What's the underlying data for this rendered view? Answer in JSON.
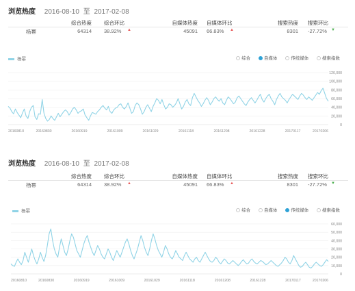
{
  "panels": [
    {
      "title": "浏览热度",
      "date_from": "2016-08-10",
      "date_sep": "至",
      "date_to": "2017-02-08",
      "stats": {
        "headers": {
          "overall": "综合热度",
          "overall_change": "综合环比",
          "media": "自媒体热度",
          "media_change": "自媒体环比",
          "search": "搜索热度",
          "search_change": "搜索环比"
        },
        "row": {
          "name": "杨幂",
          "overall": "64314",
          "overall_change": "38.92%",
          "overall_dir": "up",
          "media": "45091",
          "media_change": "66.83%",
          "media_dir": "up",
          "search": "8301",
          "search_change": "-27.72%",
          "search_dir": "down"
        }
      },
      "legend_label": "杨幂",
      "radio_options": [
        "综合",
        "自媒体",
        "传统媒体",
        "搜索指数"
      ],
      "radio_selected": 1,
      "colors": {
        "line": "#8fd3e6",
        "accent": "#2fa2d6",
        "up": "#e75c5c",
        "down": "#4caf50"
      },
      "chart_data": {
        "type": "line",
        "x_ticks": [
          "20160810",
          "20160830",
          "20160919",
          "20161009",
          "20161029",
          "20161118",
          "20161208",
          "20161228",
          "20170117",
          "20170206"
        ],
        "y_ticks": [
          "0",
          "20,000",
          "40,000",
          "60,000",
          "80,000",
          "100,000",
          "120,000"
        ],
        "ylim": [
          0,
          120000
        ],
        "grid": true,
        "series": [
          {
            "name": "杨幂",
            "values": [
              42000,
              38000,
              30000,
              25000,
              36000,
              28000,
              22000,
              16000,
              27000,
              36000,
              20000,
              14000,
              30000,
              40000,
              44000,
              18000,
              12000,
              25000,
              24000,
              58000,
              26000,
              14000,
              8000,
              12000,
              20000,
              14000,
              10000,
              18000,
              26000,
              18000,
              24000,
              30000,
              34000,
              30000,
              22000,
              28000,
              36000,
              40000,
              34000,
              26000,
              30000,
              32000,
              36000,
              22000,
              16000,
              10000,
              20000,
              28000,
              26000,
              24000,
              30000,
              34000,
              40000,
              44000,
              38000,
              34000,
              42000,
              30000,
              26000,
              34000,
              38000,
              40000,
              46000,
              48000,
              40000,
              36000,
              42000,
              50000,
              38000,
              26000,
              30000,
              44000,
              50000,
              46000,
              36000,
              24000,
              30000,
              40000,
              46000,
              38000,
              30000,
              42000,
              50000,
              60000,
              56000,
              48000,
              58000,
              46000,
              36000,
              40000,
              48000,
              46000,
              40000,
              44000,
              50000,
              60000,
              48000,
              36000,
              42000,
              52000,
              58000,
              48000,
              44000,
              62000,
              72000,
              64000,
              56000,
              50000,
              42000,
              48000,
              56000,
              62000,
              56000,
              46000,
              52000,
              60000,
              64000,
              58000,
              54000,
              60000,
              50000,
              46000,
              56000,
              64000,
              60000,
              54000,
              48000,
              52000,
              62000,
              66000,
              60000,
              54000,
              48000,
              44000,
              52000,
              58000,
              62000,
              56000,
              50000,
              56000,
              64000,
              70000,
              58000,
              52000,
              60000,
              66000,
              70000,
              60000,
              54000,
              46000,
              58000,
              66000,
              72000,
              64000,
              60000,
              56000,
              50000,
              58000,
              64000,
              70000,
              66000,
              62000,
              58000,
              66000,
              72000,
              68000,
              62000,
              58000,
              64000,
              60000,
              56000,
              62000,
              68000,
              74000,
              70000,
              78000,
              84000,
              72000,
              60000,
              54000
            ]
          }
        ]
      }
    },
    {
      "title": "浏览热度",
      "date_from": "2016-08-10",
      "date_sep": "至",
      "date_to": "2017-02-08",
      "stats": {
        "headers": {
          "overall": "综合热度",
          "overall_change": "综合环比",
          "media": "自媒体热度",
          "media_change": "自媒体环比",
          "search": "搜索热度",
          "search_change": "搜索环比"
        },
        "row": {
          "name": "杨幂",
          "overall": "64314",
          "overall_change": "38.92%",
          "overall_dir": "up",
          "media": "45091",
          "media_change": "66.83%",
          "media_dir": "up",
          "search": "8301",
          "search_change": "-27.72%",
          "search_dir": "down"
        }
      },
      "legend_label": "杨幂",
      "radio_options": [
        "综合",
        "自媒体",
        "传统媒体",
        "搜索指数"
      ],
      "radio_selected": 2,
      "colors": {
        "line": "#8fd3e6",
        "accent": "#2fa2d6",
        "up": "#e75c5c",
        "down": "#4caf50"
      },
      "chart_data": {
        "type": "line",
        "x_ticks": [
          "20160810",
          "20160830",
          "20160919",
          "20161009",
          "20161029",
          "20161118",
          "20161208",
          "20161228",
          "20170117",
          "20170206"
        ],
        "y_ticks": [
          "0",
          "10,000",
          "20,000",
          "30,000",
          "40,000",
          "50,000",
          "60,000"
        ],
        "ylim": [
          0,
          60000
        ],
        "grid": true,
        "series": [
          {
            "name": "杨幂",
            "values": [
              12000,
              10000,
              9000,
              14000,
              18000,
              14000,
              11000,
              16000,
              26000,
              20000,
              14000,
              22000,
              30000,
              22000,
              16000,
              12000,
              18000,
              26000,
              20000,
              15000,
              22000,
              34000,
              48000,
              54000,
              40000,
              30000,
              24000,
              20000,
              32000,
              42000,
              34000,
              26000,
              22000,
              30000,
              40000,
              48000,
              44000,
              36000,
              28000,
              24000,
              20000,
              28000,
              36000,
              42000,
              46000,
              38000,
              32000,
              26000,
              22000,
              28000,
              34000,
              30000,
              24000,
              20000,
              18000,
              24000,
              30000,
              26000,
              20000,
              16000,
              22000,
              28000,
              24000,
              20000,
              26000,
              32000,
              38000,
              42000,
              36000,
              28000,
              22000,
              18000,
              24000,
              30000,
              38000,
              46000,
              40000,
              32000,
              26000,
              22000,
              30000,
              40000,
              48000,
              42000,
              34000,
              28000,
              24000,
              20000,
              26000,
              34000,
              30000,
              24000,
              20000,
              18000,
              22000,
              28000,
              24000,
              20000,
              18000,
              16000,
              22000,
              26000,
              22000,
              18000,
              16000,
              14000,
              18000,
              20000,
              16000,
              14000,
              18000,
              22000,
              26000,
              22000,
              18000,
              15000,
              14000,
              16000,
              20000,
              18000,
              14000,
              12000,
              15000,
              18000,
              16000,
              13000,
              12000,
              14000,
              16000,
              14000,
              12000,
              10000,
              12000,
              15000,
              17000,
              14000,
              12000,
              13000,
              16000,
              18000,
              15000,
              13000,
              12000,
              14000,
              16000,
              15000,
              13000,
              11000,
              12000,
              14000,
              16000,
              14000,
              12000,
              10000,
              9000,
              11000,
              13000,
              16000,
              20000,
              18000,
              14000,
              12000,
              16000,
              22000,
              18000,
              14000,
              10000,
              8000,
              9000,
              12000,
              14000,
              11000,
              8000,
              7000,
              9000,
              12000,
              14000,
              12000,
              10000,
              9000,
              11000,
              14000,
              17000,
              15000
            ]
          }
        ]
      }
    }
  ]
}
